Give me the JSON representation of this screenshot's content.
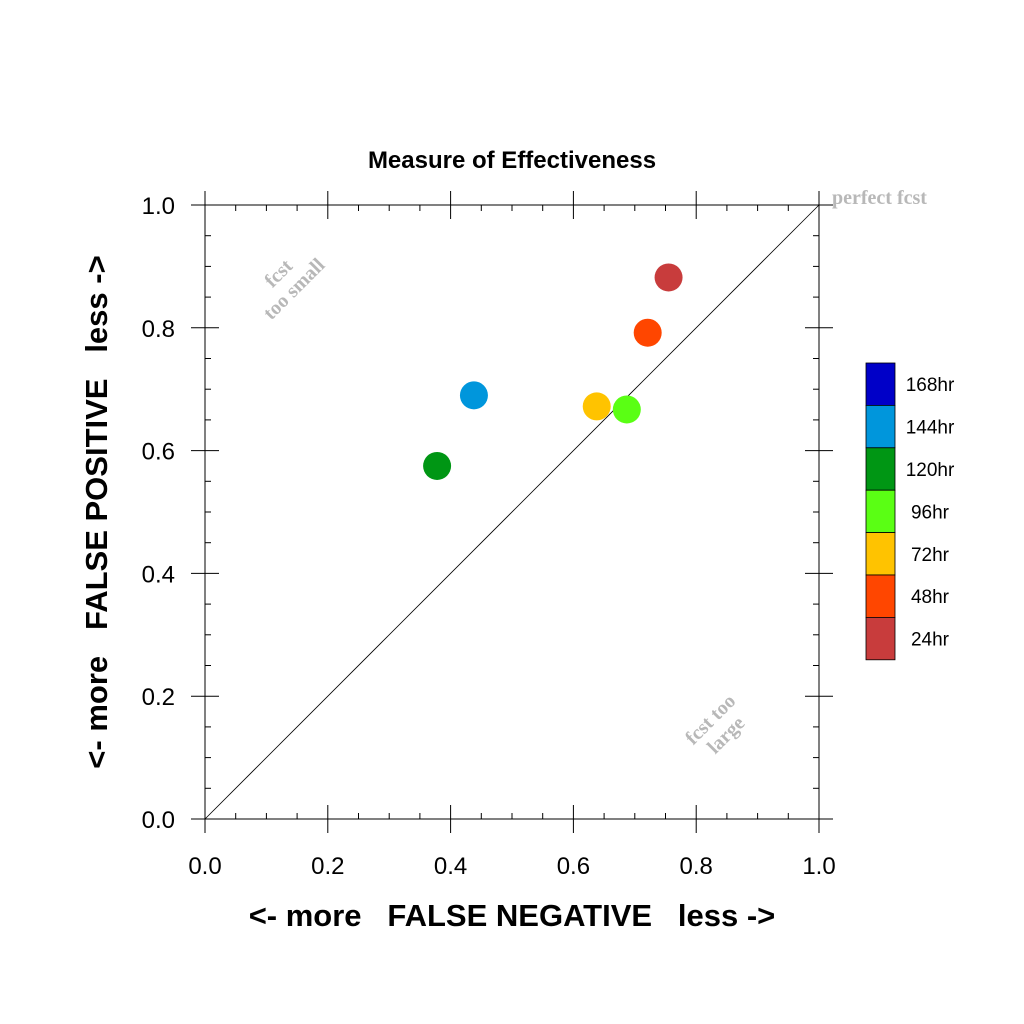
{
  "chart_data": {
    "type": "scatter",
    "title": "Measure of Effectiveness",
    "xlabel": "<- more   FALSE NEGATIVE   less ->",
    "ylabel": "<- more   FALSE POSITIVE   less ->",
    "xlim": [
      0,
      1
    ],
    "ylim": [
      0,
      1
    ],
    "x_ticks": [
      0.0,
      0.2,
      0.4,
      0.6,
      0.8,
      1.0
    ],
    "y_ticks": [
      0.0,
      0.2,
      0.4,
      0.6,
      0.8,
      1.0
    ],
    "x_tick_labels": [
      "0.0",
      "0.2",
      "0.4",
      "0.6",
      "0.8",
      "1.0"
    ],
    "y_tick_labels": [
      "0.0",
      "0.2",
      "0.4",
      "0.6",
      "0.8",
      "1.0"
    ],
    "grid": false,
    "diagonal_line": true,
    "annotations": {
      "perfect": "perfect fcst",
      "too_small": [
        "fcst",
        "too small"
      ],
      "too_large": [
        "fcst too",
        "large"
      ]
    },
    "legend": {
      "placement": "right",
      "entries": [
        {
          "label": "168hr",
          "color": "#0000C8"
        },
        {
          "label": "144hr",
          "color": "#0096DC"
        },
        {
          "label": "120hr",
          "color": "#009614"
        },
        {
          "label": "96hr",
          "color": "#5AFF14"
        },
        {
          "label": "72hr",
          "color": "#FFC300"
        },
        {
          "label": "48hr",
          "color": "#FF4600"
        },
        {
          "label": "24hr",
          "color": "#C83C3C"
        }
      ]
    },
    "series": [
      {
        "lead": "24hr",
        "x": 0.755,
        "y": 0.882,
        "color": "#C83C3C"
      },
      {
        "lead": "48hr",
        "x": 0.721,
        "y": 0.792,
        "color": "#FF4600"
      },
      {
        "lead": "72hr",
        "x": 0.638,
        "y": 0.672,
        "color": "#FFC300"
      },
      {
        "lead": "96hr",
        "x": 0.687,
        "y": 0.667,
        "color": "#5AFF14"
      },
      {
        "lead": "120hr",
        "x": 0.378,
        "y": 0.575,
        "color": "#009614"
      },
      {
        "lead": "144hr",
        "x": 0.438,
        "y": 0.69,
        "color": "#0096DC"
      }
    ]
  }
}
